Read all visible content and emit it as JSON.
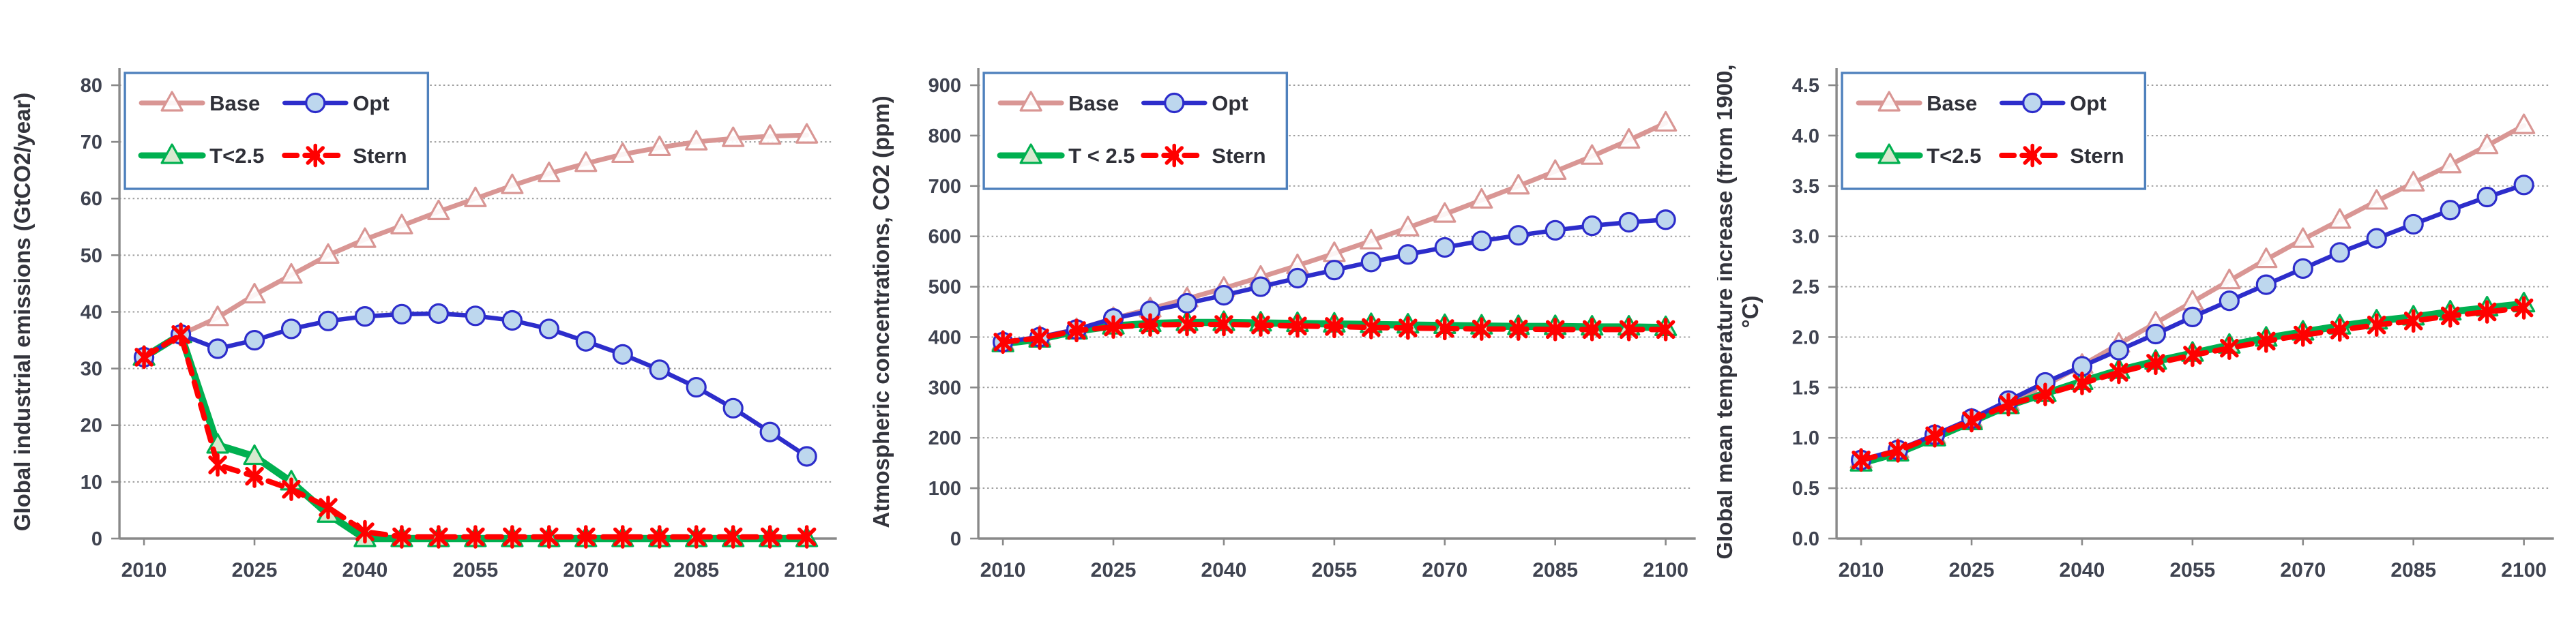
{
  "page": {
    "background": "#ffffff"
  },
  "colors": {
    "base_line": "#d99694",
    "opt_line": "#2d2dcb",
    "opt_marker_fill": "#bdd7ee",
    "t25_line": "#00b050",
    "t25_marker_fill": "#d7e9cf",
    "stern_line": "#ff0000",
    "legend_border": "#4f81bd",
    "axis_line": "#898989",
    "gridline": "#9b9b9b",
    "tick_text": "#3f4350",
    "title_text": "#33343c",
    "legend_text": "#2f3038",
    "marker_open_fill": "#ffffff"
  },
  "chart_data": [
    {
      "id": "emissions",
      "type": "line",
      "title": "",
      "xlabel": "",
      "ylabel": "Global industrial emissions (GtCO2/year)",
      "ylabel_line2": "",
      "x": [
        2010,
        2015,
        2020,
        2025,
        2030,
        2035,
        2040,
        2045,
        2050,
        2055,
        2060,
        2065,
        2070,
        2075,
        2080,
        2085,
        2090,
        2095,
        2100
      ],
      "xtick_labels": [
        "2010",
        "2025",
        "2040",
        "2055",
        "2070",
        "2085",
        "2100"
      ],
      "xtick_indices": [
        0,
        3,
        6,
        9,
        12,
        15,
        18
      ],
      "ylim": [
        0,
        80
      ],
      "yticks": [
        0,
        10,
        20,
        30,
        40,
        50,
        60,
        70,
        80
      ],
      "ytick_labels": [
        "0",
        "10",
        "20",
        "30",
        "40",
        "50",
        "60",
        "70",
        "80"
      ],
      "grid": "horizontal-dotted",
      "legend_position": "top-left",
      "series": [
        {
          "name": "Base",
          "label": "Base",
          "color": "#d99694",
          "marker": "triangle-open",
          "marker_fill": "#ffffff",
          "dash": false,
          "line_width": 7,
          "values": [
            32,
            36,
            39,
            43,
            46.5,
            50,
            52.8,
            55.2,
            57.7,
            60,
            62.3,
            64.4,
            66.2,
            67.8,
            69,
            70,
            70.6,
            71,
            71.2
          ]
        },
        {
          "name": "T<2.5",
          "label": "T<2.5",
          "color": "#00b050",
          "marker": "triangle",
          "marker_fill": "#d7e9cf",
          "dash": false,
          "line_width": 10.5,
          "values": [
            32,
            36,
            16.5,
            14.5,
            10,
            4.3,
            0,
            0,
            0,
            0,
            0,
            0,
            0,
            0,
            0,
            0,
            0,
            0,
            0
          ]
        },
        {
          "name": "Opt",
          "label": "Opt",
          "color": "#2d2dcb",
          "marker": "circle",
          "marker_fill": "#bdd7ee",
          "dash": false,
          "line_width": 6.5,
          "values": [
            32,
            36,
            33.5,
            35,
            37,
            38.4,
            39.2,
            39.6,
            39.7,
            39.3,
            38.5,
            37,
            34.8,
            32.5,
            29.8,
            26.7,
            23,
            18.8,
            14.5
          ]
        },
        {
          "name": "Stern",
          "label": "Stern",
          "color": "#ff0000",
          "marker": "asterisk",
          "marker_fill": "#ff0000",
          "dash": true,
          "line_width": 8,
          "values": [
            32,
            36,
            13,
            11,
            8.7,
            5.5,
            1.2,
            0.3,
            0.3,
            0.3,
            0.3,
            0.3,
            0.3,
            0.3,
            0.3,
            0.3,
            0.3,
            0.3,
            0.3
          ]
        }
      ],
      "legend_order": [
        "Base",
        "Opt",
        "T<2.5",
        "Stern"
      ]
    },
    {
      "id": "concentrations",
      "type": "line",
      "title": "",
      "xlabel": "",
      "ylabel": "Atmospheric concentrations, CO2 (ppm)",
      "ylabel_line2": "",
      "x": [
        2010,
        2015,
        2020,
        2025,
        2030,
        2035,
        2040,
        2045,
        2050,
        2055,
        2060,
        2065,
        2070,
        2075,
        2080,
        2085,
        2090,
        2095,
        2100
      ],
      "xtick_labels": [
        "2010",
        "2025",
        "2040",
        "2055",
        "2070",
        "2085",
        "2100"
      ],
      "xtick_indices": [
        0,
        3,
        6,
        9,
        12,
        15,
        18
      ],
      "ylim": [
        0,
        900
      ],
      "yticks": [
        0,
        100,
        200,
        300,
        400,
        500,
        600,
        700,
        800,
        900
      ],
      "ytick_labels": [
        "0",
        "100",
        "200",
        "300",
        "400",
        "500",
        "600",
        "700",
        "800",
        "900"
      ],
      "grid": "horizontal-dotted",
      "legend_position": "top-left",
      "series": [
        {
          "name": "Base",
          "label": "Base",
          "color": "#d99694",
          "marker": "triangle-open",
          "marker_fill": "#ffffff",
          "dash": false,
          "line_width": 7,
          "values": [
            390,
            400,
            415,
            437,
            456,
            476,
            497,
            519,
            542,
            566,
            591,
            617,
            644,
            672,
            700,
            729,
            759,
            791,
            825
          ]
        },
        {
          "name": "T<2.5",
          "label": "T < 2.5",
          "color": "#00b050",
          "marker": "triangle",
          "marker_fill": "#d7e9cf",
          "dash": false,
          "line_width": 10.5,
          "values": [
            387,
            396,
            412,
            422,
            427,
            429,
            429,
            428,
            427,
            426,
            425,
            424,
            423,
            422,
            421,
            421,
            420,
            420,
            419
          ]
        },
        {
          "name": "Opt",
          "label": "Opt",
          "color": "#2d2dcb",
          "marker": "circle",
          "marker_fill": "#bdd7ee",
          "dash": false,
          "line_width": 6.5,
          "values": [
            390,
            400,
            415,
            437,
            452,
            467,
            483,
            500,
            517,
            533,
            549,
            564,
            578,
            591,
            602,
            612,
            621,
            628,
            633
          ]
        },
        {
          "name": "Stern",
          "label": "Stern",
          "color": "#ff0000",
          "marker": "asterisk",
          "marker_fill": "#ff0000",
          "dash": true,
          "line_width": 8,
          "values": [
            390,
            398,
            413,
            420,
            424,
            425,
            425,
            424,
            422,
            421,
            419,
            418,
            417,
            416,
            416,
            415,
            415,
            415,
            415
          ]
        }
      ],
      "legend_order": [
        "Base",
        "Opt",
        "T < 2.5",
        "Stern"
      ]
    },
    {
      "id": "temperature",
      "type": "line",
      "title": "",
      "xlabel": "",
      "ylabel": "Global mean temperature increase (from 1900,",
      "ylabel_line2": "°C)",
      "x": [
        2010,
        2015,
        2020,
        2025,
        2030,
        2035,
        2040,
        2045,
        2050,
        2055,
        2060,
        2065,
        2070,
        2075,
        2080,
        2085,
        2090,
        2095,
        2100
      ],
      "xtick_labels": [
        "2010",
        "2025",
        "2040",
        "2055",
        "2070",
        "2085",
        "2100"
      ],
      "xtick_indices": [
        0,
        3,
        6,
        9,
        12,
        15,
        18
      ],
      "ylim": [
        0,
        4.5
      ],
      "yticks": [
        0,
        0.5,
        1.0,
        1.5,
        2.0,
        2.5,
        3.0,
        3.5,
        4.0,
        4.5
      ],
      "ytick_labels": [
        "0.0",
        "0.5",
        "1.0",
        "1.5",
        "2.0",
        "2.5",
        "3.0",
        "3.5",
        "4.0",
        "4.5"
      ],
      "grid": "horizontal-dotted",
      "legend_position": "top-left",
      "series": [
        {
          "name": "Base",
          "label": "Base",
          "color": "#d99694",
          "marker": "triangle-open",
          "marker_fill": "#ffffff",
          "dash": false,
          "line_width": 7,
          "values": [
            0.78,
            0.88,
            1.02,
            1.18,
            1.35,
            1.52,
            1.72,
            1.93,
            2.14,
            2.35,
            2.56,
            2.77,
            2.97,
            3.16,
            3.35,
            3.53,
            3.71,
            3.9,
            4.1
          ]
        },
        {
          "name": "T<2.5",
          "label": "T<2.5",
          "color": "#00b050",
          "marker": "triangle",
          "marker_fill": "#d7e9cf",
          "dash": false,
          "line_width": 10.5,
          "values": [
            0.75,
            0.85,
            1.0,
            1.16,
            1.32,
            1.44,
            1.56,
            1.67,
            1.76,
            1.84,
            1.92,
            1.99,
            2.05,
            2.11,
            2.16,
            2.2,
            2.25,
            2.29,
            2.33
          ]
        },
        {
          "name": "Opt",
          "label": "Opt",
          "color": "#2d2dcb",
          "marker": "circle",
          "marker_fill": "#bdd7ee",
          "dash": false,
          "line_width": 6.5,
          "values": [
            0.78,
            0.88,
            1.03,
            1.19,
            1.37,
            1.55,
            1.71,
            1.87,
            2.03,
            2.2,
            2.36,
            2.52,
            2.68,
            2.84,
            2.98,
            3.12,
            3.26,
            3.39,
            3.51
          ]
        },
        {
          "name": "Stern",
          "label": "Stern",
          "color": "#ff0000",
          "marker": "asterisk",
          "marker_fill": "#ff0000",
          "dash": true,
          "line_width": 8,
          "values": [
            0.78,
            0.87,
            1.02,
            1.17,
            1.33,
            1.43,
            1.54,
            1.65,
            1.74,
            1.82,
            1.89,
            1.96,
            2.02,
            2.07,
            2.12,
            2.16,
            2.21,
            2.25,
            2.29
          ]
        }
      ],
      "legend_order": [
        "Base",
        "Opt",
        "T<2.5",
        "Stern"
      ]
    }
  ]
}
